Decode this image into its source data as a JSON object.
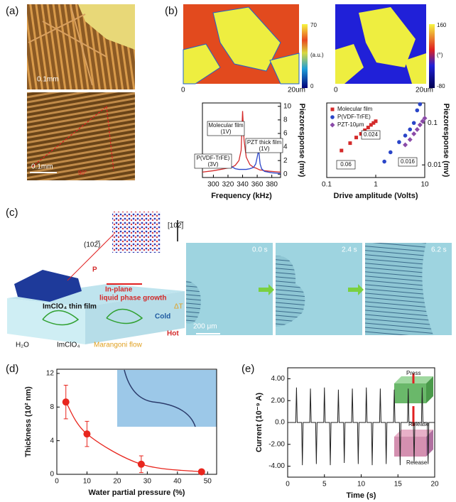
{
  "panels": {
    "a": "(a)",
    "b": "(b)",
    "c": "(c)",
    "d": "(d)",
    "e": "(e)"
  },
  "panel_a": {
    "scale_top": "0.1mm",
    "scale_bottom": "0.1mm",
    "angle": "90°"
  },
  "panel_b": {
    "maps": [
      {
        "max": "70",
        "unit": "(a.u.)",
        "min": "0",
        "x_start": "0",
        "x_end": "20um"
      },
      {
        "max": "160",
        "unit": "(°)",
        "min": "-80",
        "x_start": "0",
        "x_end": "20um"
      }
    ]
  },
  "panel_c": {
    "direction": "[102̅]",
    "plane": "(102̅)",
    "p": "P",
    "film": "ImClO₄ thin film",
    "growth": [
      "In-plane",
      "liquid phase growth"
    ],
    "cold": "Cold",
    "hot": "Hot",
    "dt": "ΔT",
    "legend": [
      "H₂O",
      "ImClO₄",
      "Marangoni flow"
    ],
    "times": [
      "0.0 s",
      "2.4 s",
      "6.2 s"
    ],
    "scale": "200 μm"
  },
  "panel_e_inset": {
    "press": "Press",
    "release": [
      "Release",
      "Release"
    ]
  },
  "chart_data": [
    {
      "type": "line",
      "xlabel": "Frequency (kHz)",
      "ylabel": "Piezoresponse (mv)",
      "xlim": [
        285,
        392
      ],
      "xticks": [
        300,
        320,
        340,
        360,
        380
      ],
      "ylim": [
        -0.5,
        10.5
      ],
      "yticks": [
        0,
        2,
        4,
        6,
        8,
        10
      ],
      "x": [
        285,
        300,
        310,
        315,
        320,
        325,
        330,
        335,
        338,
        340,
        342,
        345,
        350,
        355,
        358,
        360,
        362,
        364,
        366,
        370,
        380,
        392
      ],
      "series": [
        {
          "color": "#d42a2a",
          "values": [
            0.3,
            0.5,
            0.7,
            0.8,
            0.9,
            1.0,
            1.3,
            2.0,
            3.5,
            9.3,
            5.0,
            2.5,
            1.4,
            1.0,
            0.9,
            0.8,
            0.7,
            0.6,
            0.6,
            0.5,
            0.4,
            0.3
          ]
        },
        {
          "color": "#2a45c8",
          "values": [
            1.2,
            1.3,
            1.6,
            1.8,
            1.5,
            1.1,
            0.8,
            0.7,
            0.7,
            0.7,
            0.7,
            0.7,
            0.8,
            1.0,
            1.5,
            2.5,
            3.6,
            1.5,
            0.8,
            0.4,
            0.2,
            0.1
          ]
        }
      ],
      "annotations": [
        [
          "Molecular film",
          "(1V)"
        ],
        [
          "PZT thick film",
          "(1V)"
        ],
        [
          "P(VDF-TrFE)",
          "(3V)"
        ]
      ]
    },
    {
      "type": "scatter",
      "xlabel": "Drive amplitude (Volts)",
      "ylabel": "Piezoresponse (mv)",
      "xlog": true,
      "ylog": true,
      "xlim": [
        0.1,
        10
      ],
      "xticks": [
        0.1,
        1,
        10
      ],
      "ylim": [
        0.005,
        0.3
      ],
      "yticks": [
        0.01,
        0.1
      ],
      "legend": "upper left",
      "series": [
        {
          "name": "Molecular film",
          "color": "#d42a2a",
          "marker": "square",
          "x": [
            0.2,
            0.3,
            0.4,
            0.5,
            0.6,
            0.7,
            0.8,
            0.9,
            1.0
          ],
          "values": [
            0.022,
            0.033,
            0.045,
            0.055,
            0.067,
            0.078,
            0.09,
            0.1,
            0.11
          ]
        },
        {
          "name": "P(VDF-TrFE)",
          "color": "#2a45c8",
          "marker": "circle",
          "x": [
            1.5,
            2,
            3,
            4,
            5,
            6,
            7,
            8
          ],
          "values": [
            0.012,
            0.02,
            0.035,
            0.05,
            0.07,
            0.1,
            0.2,
            0.28
          ]
        },
        {
          "name": "PZT-10μm",
          "color": "#8a4aa8",
          "marker": "diamond",
          "x": [
            4,
            5,
            6,
            7,
            8,
            9,
            10
          ],
          "values": [
            0.03,
            0.04,
            0.055,
            0.07,
            0.09,
            0.11,
            0.13
          ]
        }
      ],
      "annotations": [
        "0.024",
        "0.06",
        "0.016"
      ]
    },
    {
      "type": "scatter",
      "xlabel": "Water partial pressure (%)",
      "ylabel": "Thickness (10² nm)",
      "xlim": [
        0,
        53
      ],
      "xticks": [
        0,
        10,
        20,
        30,
        40,
        50
      ],
      "ylim": [
        0,
        12.5
      ],
      "yticks": [
        0,
        4,
        8,
        12
      ],
      "color": "#e8261e",
      "fit": true,
      "x": [
        3,
        10,
        28,
        48
      ],
      "values": [
        8.6,
        4.8,
        1.2,
        0.3
      ],
      "errors": [
        2.0,
        1.5,
        1.0,
        0.2
      ]
    },
    {
      "type": "line",
      "xlabel": "Time (s)",
      "ylabel": "Current (10⁻⁹ A)",
      "xlim": [
        0,
        20
      ],
      "xticks": [
        0,
        5,
        10,
        15,
        20
      ],
      "ylim": [
        -5,
        5
      ],
      "yticks": [
        {
          "value": 4,
          "label": "4.00"
        },
        {
          "value": 2,
          "label": "2.00"
        },
        {
          "value": 0,
          "label": "0.0"
        },
        {
          "value": -2,
          "label": "-2.00"
        },
        {
          "value": -4,
          "label": "-4.00"
        }
      ],
      "color": "#222222",
      "x": [
        0,
        1.1,
        1.2,
        1.3,
        1.9,
        2.0,
        2.1,
        3.0,
        3.1,
        3.2,
        3.8,
        3.9,
        4.0,
        4.9,
        5.0,
        5.1,
        5.7,
        5.8,
        5.9,
        6.8,
        6.9,
        7.0,
        7.6,
        7.7,
        7.8,
        8.7,
        8.8,
        8.9,
        9.5,
        9.6,
        9.7,
        10.6,
        10.7,
        10.8,
        11.4,
        11.5,
        11.6,
        12.5,
        12.6,
        12.7,
        13.3,
        13.4,
        13.5,
        14.4,
        14.5,
        14.6,
        15.2,
        15.3,
        15.4,
        16.3,
        16.4,
        16.5,
        17.1,
        17.2,
        17.3,
        18.2,
        18.3,
        18.4,
        19.0,
        19.1,
        19.2,
        20
      ],
      "values": [
        0,
        0,
        3.2,
        0,
        0,
        -3.9,
        0,
        0,
        3.1,
        0,
        0,
        -3.8,
        0,
        0,
        3.2,
        0,
        0,
        -3.9,
        0,
        0,
        3.0,
        0,
        0,
        -3.7,
        0,
        0,
        3.1,
        0,
        0,
        -3.8,
        0,
        0,
        3.2,
        0,
        0,
        -3.9,
        0,
        0,
        3.1,
        0,
        0,
        -3.8,
        0,
        0,
        3.0,
        0,
        0,
        -3.9,
        0,
        0,
        3.1,
        0,
        0,
        -3.7,
        0,
        0,
        3.2,
        0,
        0,
        -3.8,
        0,
        0
      ]
    }
  ]
}
